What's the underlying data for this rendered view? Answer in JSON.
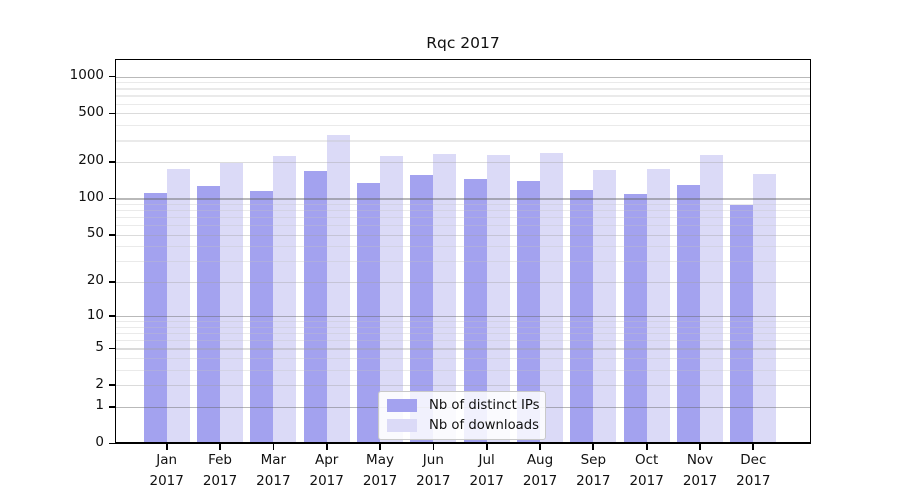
{
  "chart_data": {
    "type": "bar",
    "title": "Rqc 2017",
    "xlabel": "",
    "ylabel": "",
    "categories": [
      "Jan 2017",
      "Feb 2017",
      "Mar 2017",
      "Apr 2017",
      "May 2017",
      "Jun 2017",
      "Jul 2017",
      "Aug 2017",
      "Sep 2017",
      "Oct 2017",
      "Nov 2017",
      "Dec 2017"
    ],
    "series": [
      {
        "name": "Nb of distinct IPs",
        "color": "#a3a2ef",
        "values": [
          110,
          126,
          116,
          168,
          134,
          155,
          144,
          139,
          117,
          108,
          128,
          88
        ]
      },
      {
        "name": "Nb of downloads",
        "color": "#dbdaf7",
        "values": [
          173,
          197,
          222,
          330,
          224,
          234,
          227,
          238,
          171,
          176,
          228,
          160
        ]
      }
    ],
    "y_axis": {
      "scale": "log1p",
      "ylim": [
        0,
        1000
      ],
      "ticks": [
        0,
        1,
        2,
        5,
        10,
        20,
        50,
        100,
        200,
        500,
        1000
      ],
      "decade_lines": [
        1,
        10,
        100,
        1000
      ],
      "minor_gridlines": [
        3,
        4,
        6,
        7,
        8,
        9,
        30,
        40,
        60,
        70,
        80,
        90,
        300,
        400,
        600,
        700,
        800,
        900
      ]
    },
    "grid": true,
    "legend_position": "inside-bottom-center",
    "background_color": "#ffffff",
    "axis_color": "#000000"
  }
}
